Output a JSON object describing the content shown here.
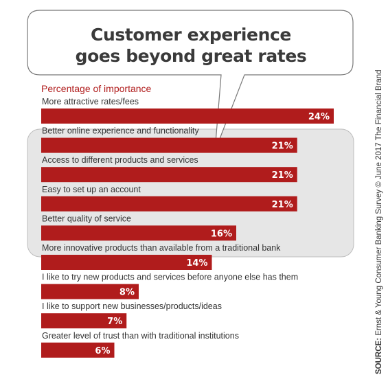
{
  "chart_data": {
    "type": "bar",
    "orientation": "horizontal",
    "title_lines": [
      "Customer experience",
      "goes beyond great rates"
    ],
    "subtitle": "Percentage of importance",
    "categories": [
      "More attractive rates/fees",
      "Better online experience and functionality",
      "Access to different products and services",
      "Easy to set up an account",
      "Better quality of service",
      "More innovative products than available from a traditional bank",
      "I like to try new products and services before anyone else has them",
      "I like to support new businesses/products/ideas",
      "Greater level of trust than with traditional institutions"
    ],
    "values": [
      24,
      21,
      21,
      21,
      16,
      14,
      8,
      7,
      6
    ],
    "value_labels": [
      "24%",
      "21%",
      "21%",
      "21%",
      "16%",
      "14%",
      "8%",
      "7%",
      "6%"
    ],
    "highlighted_categories": [
      "Better online experience and functionality",
      "Access to different products and services",
      "Easy to set up an account",
      "Better quality of service"
    ],
    "bar_color": "#b01c1c",
    "highlight_box_color": "#e6e6e6",
    "xlim": [
      0,
      24
    ],
    "grid": false,
    "legend": "none"
  },
  "source": {
    "label": "SOURCE:",
    "text": " Ernst & Young Consumer Banking Survey © June 2017 The Financial Brand"
  }
}
